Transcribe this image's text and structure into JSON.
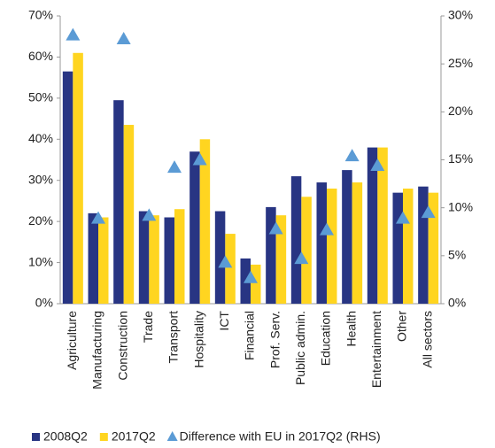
{
  "chart_data": {
    "type": "bar",
    "categories": [
      "Agriculture",
      "Manufacturing",
      "Construction",
      "Trade",
      "Transport",
      "Hospitality",
      "ICT",
      "Financial",
      "Prof. Serv.",
      "Public admin.",
      "Education",
      "Health",
      "Entertainment",
      "Other",
      "All sectors"
    ],
    "series": [
      {
        "name": "2008Q2",
        "color": "#283583",
        "type": "bar",
        "values": [
          56.5,
          22,
          49.5,
          22.5,
          21,
          37,
          22.5,
          11,
          23.5,
          31,
          29.5,
          32.5,
          38,
          27,
          28.5
        ]
      },
      {
        "name": "2017Q2",
        "color": "#ffd520",
        "type": "bar",
        "values": [
          61,
          21,
          43.5,
          21.5,
          23,
          40,
          17,
          9.5,
          21.5,
          26,
          28,
          29.5,
          38,
          28,
          27
        ]
      },
      {
        "name": "Difference with EU in 2017Q2 (RHS)",
        "color": "#5b9bd5",
        "type": "scatter",
        "axis": "y2",
        "values": [
          28,
          8.9,
          27.6,
          9.2,
          14.2,
          15,
          4.3,
          2.7,
          7.8,
          4.7,
          7.7,
          15.4,
          14.4,
          8.9,
          9.5
        ]
      }
    ],
    "ylim": [
      0,
      70
    ],
    "yticks": [
      {
        "value": 0,
        "label": "0%"
      },
      {
        "value": 10,
        "label": "10%"
      },
      {
        "value": 20,
        "label": "20%"
      },
      {
        "value": 30,
        "label": "30%"
      },
      {
        "value": 40,
        "label": "40%"
      },
      {
        "value": 50,
        "label": "50%"
      },
      {
        "value": 60,
        "label": "60%"
      },
      {
        "value": 70,
        "label": "70%"
      }
    ],
    "y2lim": [
      0,
      30
    ],
    "y2ticks": [
      {
        "value": 0,
        "label": "0%"
      },
      {
        "value": 5,
        "label": "5%"
      },
      {
        "value": 10,
        "label": "10%"
      },
      {
        "value": 15,
        "label": "15%"
      },
      {
        "value": 20,
        "label": "20%"
      },
      {
        "value": 25,
        "label": "25%"
      },
      {
        "value": 30,
        "label": "30%"
      }
    ],
    "legend": "bottom"
  }
}
